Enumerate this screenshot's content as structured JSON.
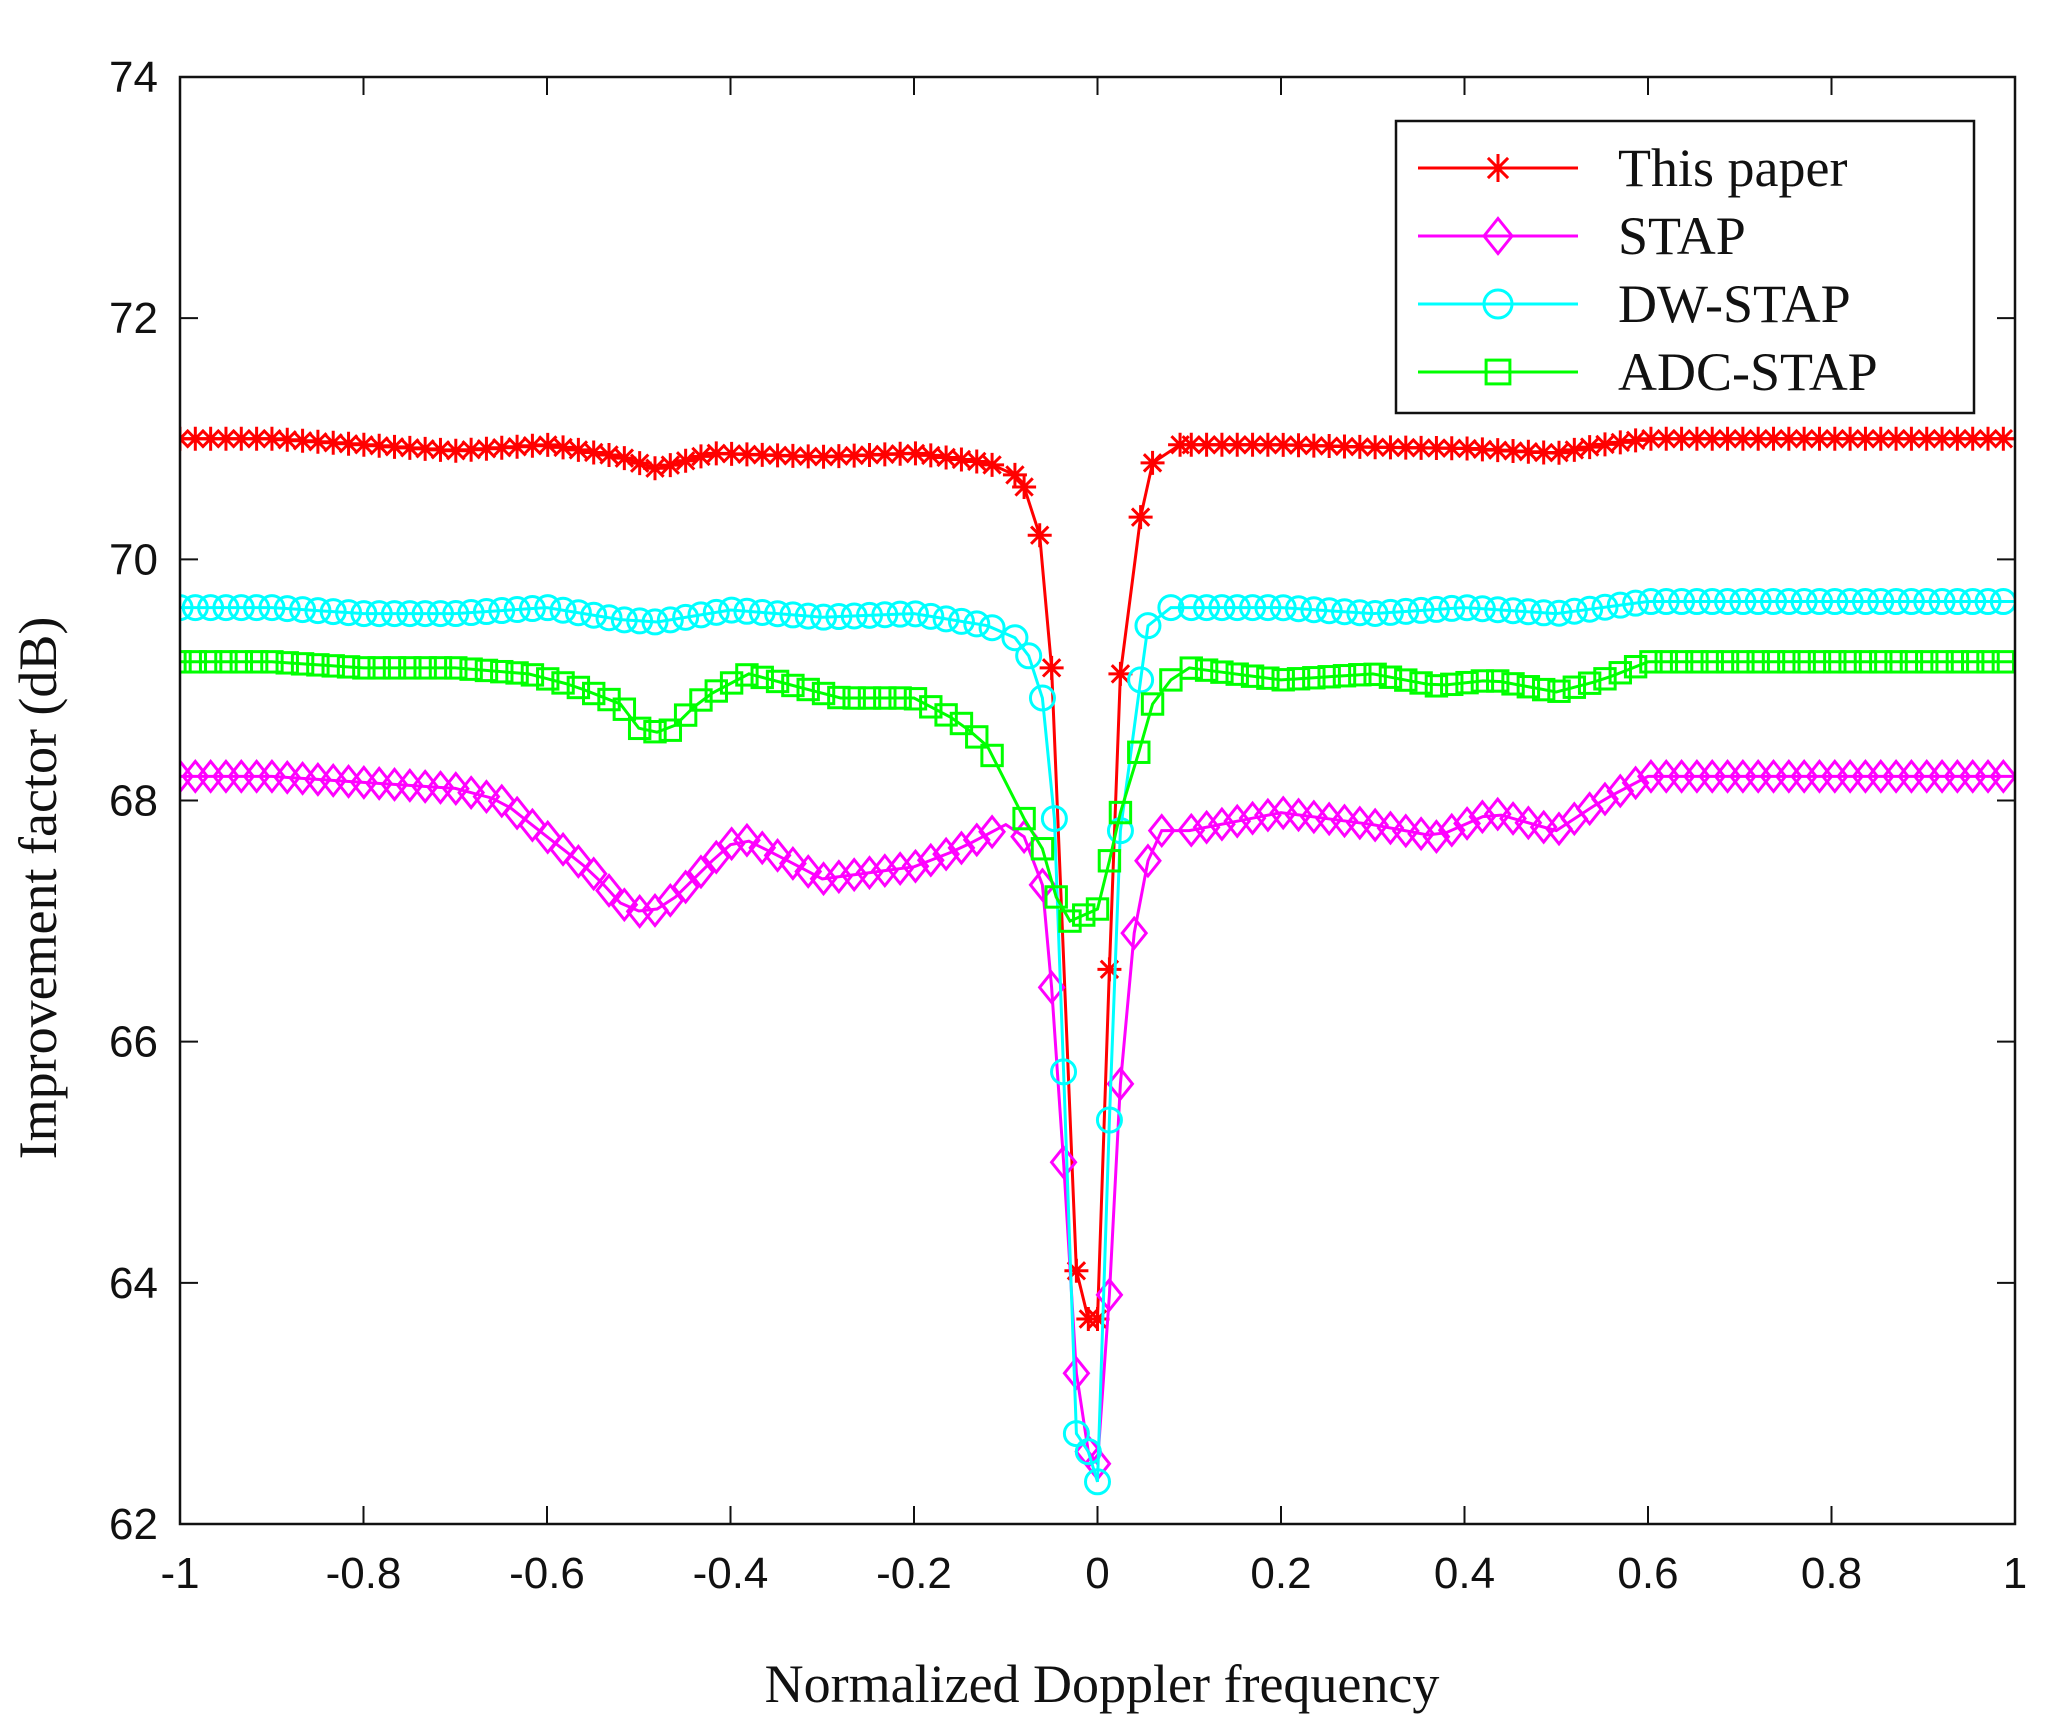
{
  "chart_data": {
    "type": "line",
    "xlabel": "Normalized Doppler frequency",
    "ylabel": "Improvement factor (dB)",
    "xlim": [
      -1,
      1
    ],
    "ylim": [
      62,
      74
    ],
    "xticks": [
      -1,
      -0.8,
      -0.6,
      -0.4,
      -0.2,
      0,
      0.2,
      0.4,
      0.6,
      0.8,
      1
    ],
    "xtick_labels": [
      "-1",
      "-0.8",
      "-0.6",
      "-0.4",
      "-0.2",
      "0",
      "0.2",
      "0.4",
      "0.6",
      "0.8",
      "1"
    ],
    "yticks": [
      62,
      64,
      66,
      68,
      70,
      72,
      74
    ],
    "ytick_labels": [
      "62",
      "64",
      "66",
      "68",
      "70",
      "72",
      "74"
    ],
    "grid": false,
    "legend_position": "top-right",
    "series": [
      {
        "name": "This paper",
        "color": "#ff0000",
        "marker": "asterisk",
        "points": [
          [
            -1,
            71.0
          ],
          [
            -0.9,
            71.0
          ],
          [
            -0.8,
            70.95
          ],
          [
            -0.7,
            70.9
          ],
          [
            -0.6,
            70.95
          ],
          [
            -0.52,
            70.85
          ],
          [
            -0.48,
            70.75
          ],
          [
            -0.42,
            70.88
          ],
          [
            -0.3,
            70.85
          ],
          [
            -0.2,
            70.88
          ],
          [
            -0.12,
            70.8
          ],
          [
            -0.09,
            70.7
          ],
          [
            -0.08,
            70.6
          ],
          [
            -0.063,
            70.2
          ],
          [
            -0.05,
            69.1
          ],
          [
            -0.023,
            64.1
          ],
          [
            -0.01,
            63.7
          ],
          [
            0.0,
            63.7
          ],
          [
            0.013,
            66.6
          ],
          [
            0.025,
            69.05
          ],
          [
            0.047,
            70.35
          ],
          [
            0.06,
            70.8
          ],
          [
            0.09,
            70.95
          ],
          [
            0.2,
            70.95
          ],
          [
            0.3,
            70.93
          ],
          [
            0.4,
            70.92
          ],
          [
            0.5,
            70.88
          ],
          [
            0.55,
            70.95
          ],
          [
            0.6,
            71.0
          ],
          [
            0.8,
            71.0
          ],
          [
            1,
            71.0
          ]
        ]
      },
      {
        "name": "STAP",
        "color": "#ff00ff",
        "marker": "diamond",
        "points": [
          [
            -1,
            68.2
          ],
          [
            -0.9,
            68.2
          ],
          [
            -0.8,
            68.15
          ],
          [
            -0.7,
            68.1
          ],
          [
            -0.65,
            68.0
          ],
          [
            -0.6,
            67.7
          ],
          [
            -0.55,
            67.4
          ],
          [
            -0.52,
            67.15
          ],
          [
            -0.49,
            67.05
          ],
          [
            -0.46,
            67.2
          ],
          [
            -0.42,
            67.5
          ],
          [
            -0.39,
            67.7
          ],
          [
            -0.35,
            67.55
          ],
          [
            -0.3,
            67.35
          ],
          [
            -0.2,
            67.45
          ],
          [
            -0.15,
            67.6
          ],
          [
            -0.1,
            67.8
          ],
          [
            -0.08,
            67.7
          ],
          [
            -0.06,
            67.3
          ],
          [
            -0.05,
            66.45
          ],
          [
            -0.037,
            65.0
          ],
          [
            -0.023,
            63.25
          ],
          [
            -0.01,
            62.6
          ],
          [
            0.0,
            62.5
          ],
          [
            0.013,
            63.9
          ],
          [
            0.025,
            65.65
          ],
          [
            0.04,
            66.9
          ],
          [
            0.055,
            67.5
          ],
          [
            0.07,
            67.75
          ],
          [
            0.1,
            67.75
          ],
          [
            0.2,
            67.9
          ],
          [
            0.3,
            67.8
          ],
          [
            0.37,
            67.7
          ],
          [
            0.43,
            67.9
          ],
          [
            0.5,
            67.75
          ],
          [
            0.55,
            68.0
          ],
          [
            0.6,
            68.2
          ],
          [
            0.7,
            68.2
          ],
          [
            0.8,
            68.2
          ],
          [
            1,
            68.2
          ]
        ]
      },
      {
        "name": "DW-STAP",
        "color": "#00ffff",
        "marker": "circle",
        "points": [
          [
            -1,
            69.6
          ],
          [
            -0.9,
            69.6
          ],
          [
            -0.8,
            69.55
          ],
          [
            -0.7,
            69.55
          ],
          [
            -0.6,
            69.6
          ],
          [
            -0.52,
            69.5
          ],
          [
            -0.48,
            69.48
          ],
          [
            -0.4,
            69.58
          ],
          [
            -0.3,
            69.52
          ],
          [
            -0.2,
            69.55
          ],
          [
            -0.12,
            69.45
          ],
          [
            -0.09,
            69.35
          ],
          [
            -0.075,
            69.2
          ],
          [
            -0.06,
            68.85
          ],
          [
            -0.047,
            67.85
          ],
          [
            -0.037,
            65.75
          ],
          [
            -0.023,
            62.75
          ],
          [
            -0.01,
            62.6
          ],
          [
            0.0,
            62.35
          ],
          [
            0.013,
            65.35
          ],
          [
            0.025,
            67.75
          ],
          [
            0.047,
            69.0
          ],
          [
            0.055,
            69.45
          ],
          [
            0.08,
            69.6
          ],
          [
            0.2,
            69.6
          ],
          [
            0.3,
            69.55
          ],
          [
            0.4,
            69.6
          ],
          [
            0.5,
            69.55
          ],
          [
            0.55,
            69.6
          ],
          [
            0.6,
            69.65
          ],
          [
            0.8,
            69.65
          ],
          [
            1,
            69.65
          ]
        ]
      },
      {
        "name": "ADC-STAP",
        "color": "#00ff00",
        "marker": "square",
        "points": [
          [
            -1,
            69.15
          ],
          [
            -0.9,
            69.15
          ],
          [
            -0.8,
            69.1
          ],
          [
            -0.7,
            69.1
          ],
          [
            -0.62,
            69.05
          ],
          [
            -0.57,
            68.95
          ],
          [
            -0.52,
            68.8
          ],
          [
            -0.5,
            68.6
          ],
          [
            -0.47,
            68.55
          ],
          [
            -0.43,
            68.85
          ],
          [
            -0.38,
            69.05
          ],
          [
            -0.33,
            68.95
          ],
          [
            -0.28,
            68.85
          ],
          [
            -0.2,
            68.85
          ],
          [
            -0.15,
            68.65
          ],
          [
            -0.12,
            68.45
          ],
          [
            -0.1,
            68.15
          ],
          [
            -0.08,
            67.85
          ],
          [
            -0.06,
            67.6
          ],
          [
            -0.045,
            67.2
          ],
          [
            -0.03,
            67.0
          ],
          [
            -0.015,
            67.05
          ],
          [
            0.0,
            67.1
          ],
          [
            0.013,
            67.5
          ],
          [
            0.025,
            67.9
          ],
          [
            0.045,
            68.4
          ],
          [
            0.06,
            68.8
          ],
          [
            0.08,
            69.0
          ],
          [
            0.1,
            69.1
          ],
          [
            0.2,
            69.0
          ],
          [
            0.3,
            69.05
          ],
          [
            0.37,
            68.95
          ],
          [
            0.43,
            69.0
          ],
          [
            0.5,
            68.9
          ],
          [
            0.55,
            69.0
          ],
          [
            0.6,
            69.15
          ],
          [
            0.8,
            69.15
          ],
          [
            1,
            69.15
          ]
        ]
      }
    ]
  }
}
